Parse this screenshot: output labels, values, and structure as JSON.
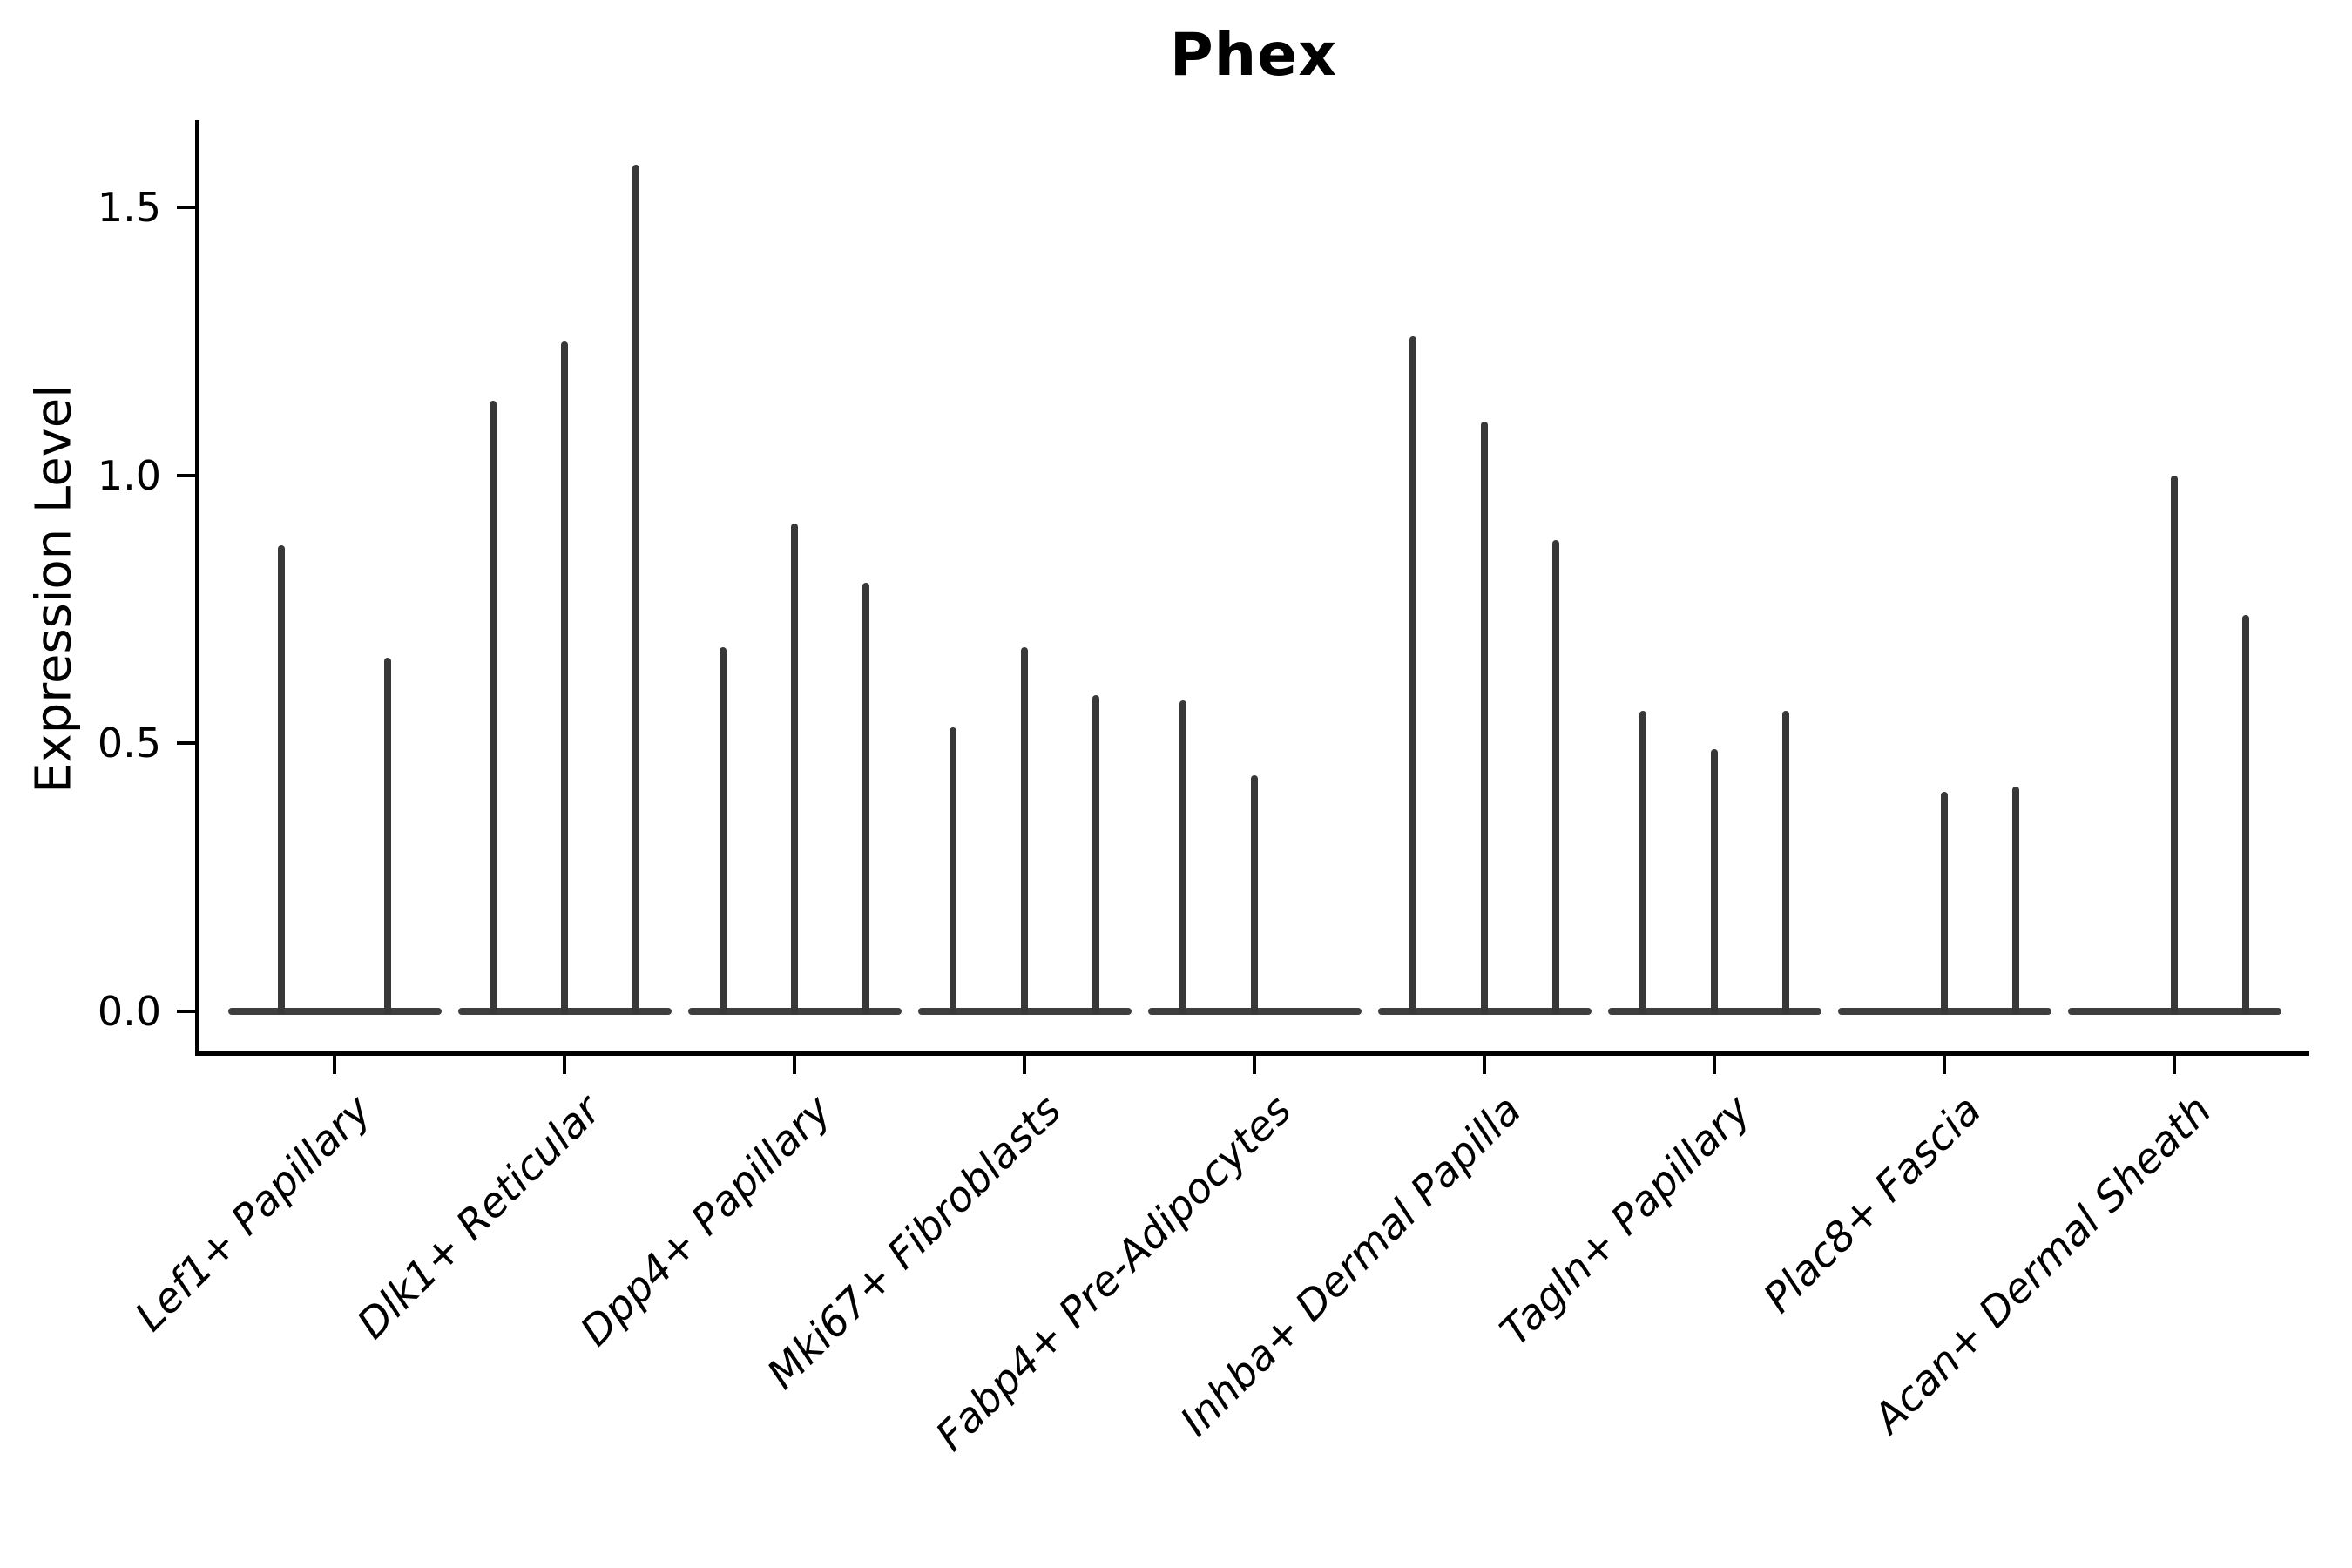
{
  "figure": {
    "title": "Phex"
  },
  "chart_data": {
    "type": "violin",
    "title": "Phex",
    "ylabel": "Expression Level",
    "xlabel": "",
    "grid": false,
    "legend": null,
    "ylim": [
      0,
      1.66
    ],
    "yticks": [
      "0.0",
      "0.5",
      "1.0",
      "1.5"
    ],
    "ytick_values": [
      0.0,
      0.5,
      1.0,
      1.5
    ],
    "categories": [
      "Lef1+ Papillary",
      "Dlk1+ Reticular",
      "Dpp4+ Papillary",
      "Mki67+ Fibroblasts",
      "Fabp4+ Pre-Adipocytes",
      "Inhba+ Dermal Papilla",
      "Tagln+ Papillary",
      "Plac8+ Fascia",
      "Acan+ Dermal Sheath"
    ],
    "groups": [
      {
        "category": "Lef1+ Papillary",
        "violin_maxima": [
          0.87,
          0.66
        ]
      },
      {
        "category": "Dlk1+ Reticular",
        "violin_maxima": [
          1.14,
          1.25,
          1.58
        ]
      },
      {
        "category": "Dpp4+ Papillary",
        "violin_maxima": [
          0.68,
          0.91,
          0.8
        ]
      },
      {
        "category": "Mki67+ Fibroblasts",
        "violin_maxima": [
          0.53,
          0.68,
          0.59
        ]
      },
      {
        "category": "Fabp4+ Pre-Adipocytes",
        "violin_maxima": [
          0.58,
          0.44,
          0
        ]
      },
      {
        "category": "Inhba+ Dermal Papilla",
        "violin_maxima": [
          1.26,
          1.1,
          0.88
        ]
      },
      {
        "category": "Tagln+ Papillary",
        "violin_maxima": [
          0.56,
          0.49,
          0.56
        ]
      },
      {
        "category": "Plac8+ Fascia",
        "violin_maxima": [
          0,
          0.41,
          0.42
        ]
      },
      {
        "category": "Acan+ Dermal Sheath",
        "violin_maxima": [
          0,
          1.0,
          0.74
        ]
      }
    ],
    "colors": {
      "violin": "#383838",
      "axis": "#000000",
      "background": "#ffffff"
    }
  }
}
